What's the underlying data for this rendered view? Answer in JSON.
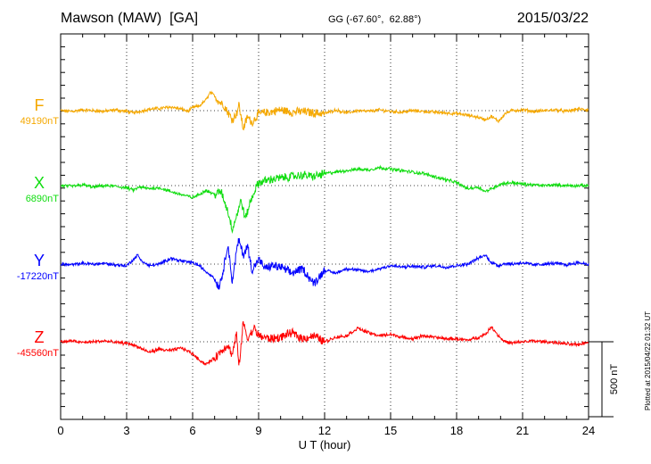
{
  "header": {
    "station": "Mawson (MAW)  [GA]",
    "coords": "GG (-67.60°,  62.88°)",
    "date": "2015/03/22"
  },
  "footer": {
    "plotted": "Plotted at 2015/04/22 01:32 UT"
  },
  "colors": {
    "F": "#f5a800",
    "X": "#10dd10",
    "Y": "#0000ff",
    "Z": "#ff0000"
  },
  "chart_data": {
    "type": "line",
    "title": "Mawson (MAW)  [GA]",
    "xlabel": "U T (hour)",
    "xlim": [
      0,
      24
    ],
    "xticks": [
      0,
      3,
      6,
      9,
      12,
      15,
      18,
      21,
      24
    ],
    "xtick_labels": [
      "0",
      "3",
      "6",
      "9",
      "12",
      "15",
      "18",
      "21",
      "24"
    ],
    "grid": true,
    "scale_bar": {
      "label": "500 nT",
      "value_nT": 500
    },
    "series": [
      {
        "name": "F",
        "baseline": "49190nT",
        "x": [
          0,
          0.5,
          1,
          1.5,
          2,
          2.5,
          3,
          3.3,
          3.6,
          4,
          4.5,
          5,
          5.5,
          5.8,
          6,
          6.3,
          6.6,
          6.8,
          7,
          7.2,
          7.4,
          7.6,
          7.8,
          8,
          8.1,
          8.3,
          8.5,
          8.7,
          9,
          9.5,
          10,
          10.5,
          11,
          11.5,
          12,
          12.5,
          13,
          13.5,
          14,
          14.5,
          15,
          15.5,
          16,
          16.5,
          17,
          17.5,
          18,
          18.5,
          19,
          19.3,
          19.6,
          19.9,
          20.2,
          20.5,
          21,
          21.5,
          22,
          22.5,
          23,
          23.5,
          24
        ],
        "values": [
          0,
          -5,
          5,
          0,
          -5,
          5,
          -5,
          -15,
          -5,
          10,
          15,
          25,
          10,
          -5,
          20,
          30,
          70,
          120,
          100,
          60,
          40,
          -10,
          -60,
          -20,
          40,
          -120,
          -40,
          -80,
          -20,
          -10,
          5,
          -10,
          -5,
          -15,
          -20,
          5,
          -15,
          0,
          -5,
          5,
          -5,
          -10,
          0,
          -5,
          -10,
          -15,
          -20,
          -30,
          -45,
          -60,
          -40,
          -70,
          -20,
          0,
          5,
          -5,
          0,
          5,
          -5,
          10,
          5
        ]
      },
      {
        "name": "X",
        "baseline": "6890nT",
        "x": [
          0,
          0.5,
          1,
          1.5,
          2,
          2.5,
          3,
          3.3,
          3.6,
          4,
          4.5,
          5,
          5.5,
          6,
          6.3,
          6.6,
          7,
          7.3,
          7.6,
          7.8,
          8,
          8.2,
          8.4,
          8.6,
          8.8,
          9,
          9.5,
          10,
          10.5,
          11,
          11.5,
          12,
          12.5,
          13,
          13.5,
          14,
          14.5,
          15,
          15.5,
          16,
          16.5,
          17,
          17.5,
          18,
          18.5,
          19,
          19.3,
          19.6,
          20,
          20.5,
          21,
          21.5,
          22,
          22.5,
          23,
          23.5,
          24
        ],
        "values": [
          0,
          -5,
          5,
          -10,
          0,
          -5,
          -15,
          -30,
          -10,
          -20,
          -15,
          -40,
          -60,
          -80,
          -60,
          -30,
          -60,
          -40,
          -170,
          -290,
          -200,
          -100,
          -220,
          -120,
          -40,
          20,
          40,
          50,
          60,
          70,
          60,
          80,
          90,
          100,
          110,
          105,
          120,
          110,
          100,
          90,
          80,
          60,
          40,
          20,
          -20,
          -10,
          -40,
          -20,
          10,
          20,
          10,
          5,
          0,
          5,
          0,
          0,
          0
        ]
      },
      {
        "name": "Y",
        "baseline": "-17220nT",
        "x": [
          0,
          0.5,
          1,
          1.5,
          2,
          2.5,
          3,
          3.3,
          3.5,
          3.7,
          4,
          4.5,
          5,
          5.5,
          6,
          6.3,
          6.6,
          6.9,
          7.2,
          7.4,
          7.6,
          7.8,
          8,
          8.1,
          8.3,
          8.5,
          8.7,
          9,
          9.3,
          9.6,
          10,
          10.5,
          11,
          11.5,
          12,
          12.5,
          13,
          13.5,
          14,
          14.5,
          15,
          15.5,
          16,
          16.5,
          17,
          17.5,
          18,
          18.5,
          19,
          19.3,
          19.6,
          19.9,
          20.2,
          20.5,
          21,
          21.5,
          22,
          22.5,
          23,
          23.5,
          24
        ],
        "values": [
          0,
          -5,
          5,
          0,
          5,
          -5,
          -10,
          30,
          60,
          20,
          -10,
          0,
          40,
          20,
          10,
          -10,
          -50,
          -80,
          -150,
          -40,
          140,
          -120,
          90,
          160,
          60,
          120,
          -40,
          30,
          -30,
          -10,
          -20,
          -60,
          -30,
          -130,
          -40,
          -60,
          -30,
          -40,
          -50,
          -30,
          -10,
          -20,
          -15,
          -20,
          -10,
          -20,
          -10,
          0,
          40,
          60,
          10,
          -10,
          5,
          0,
          10,
          -5,
          0,
          5,
          -5,
          10,
          0
        ]
      },
      {
        "name": "Z",
        "baseline": "-45560nT",
        "x": [
          0,
          0.5,
          1,
          1.5,
          2,
          2.5,
          3,
          3.3,
          3.6,
          4,
          4.5,
          5,
          5.5,
          6,
          6.3,
          6.6,
          7,
          7.3,
          7.6,
          7.8,
          8,
          8.1,
          8.3,
          8.5,
          8.8,
          9,
          9.5,
          10,
          10.5,
          11,
          11.5,
          12,
          12.5,
          13,
          13.5,
          14,
          14.5,
          15,
          15.5,
          16,
          16.5,
          17,
          17.5,
          18,
          18.5,
          19,
          19.3,
          19.6,
          19.9,
          20.2,
          20.5,
          21,
          21.5,
          22,
          22.5,
          23,
          23.5,
          24
        ],
        "values": [
          0,
          5,
          -5,
          0,
          5,
          -5,
          -10,
          -20,
          -40,
          -70,
          -50,
          -60,
          -40,
          -80,
          -120,
          -150,
          -110,
          -60,
          -20,
          -90,
          60,
          -180,
          130,
          20,
          90,
          40,
          20,
          30,
          60,
          20,
          40,
          0,
          30,
          40,
          90,
          60,
          40,
          50,
          30,
          20,
          40,
          30,
          20,
          20,
          10,
          30,
          50,
          100,
          40,
          0,
          -10,
          0,
          5,
          0,
          -5,
          -15,
          -20,
          0
        ]
      }
    ]
  }
}
